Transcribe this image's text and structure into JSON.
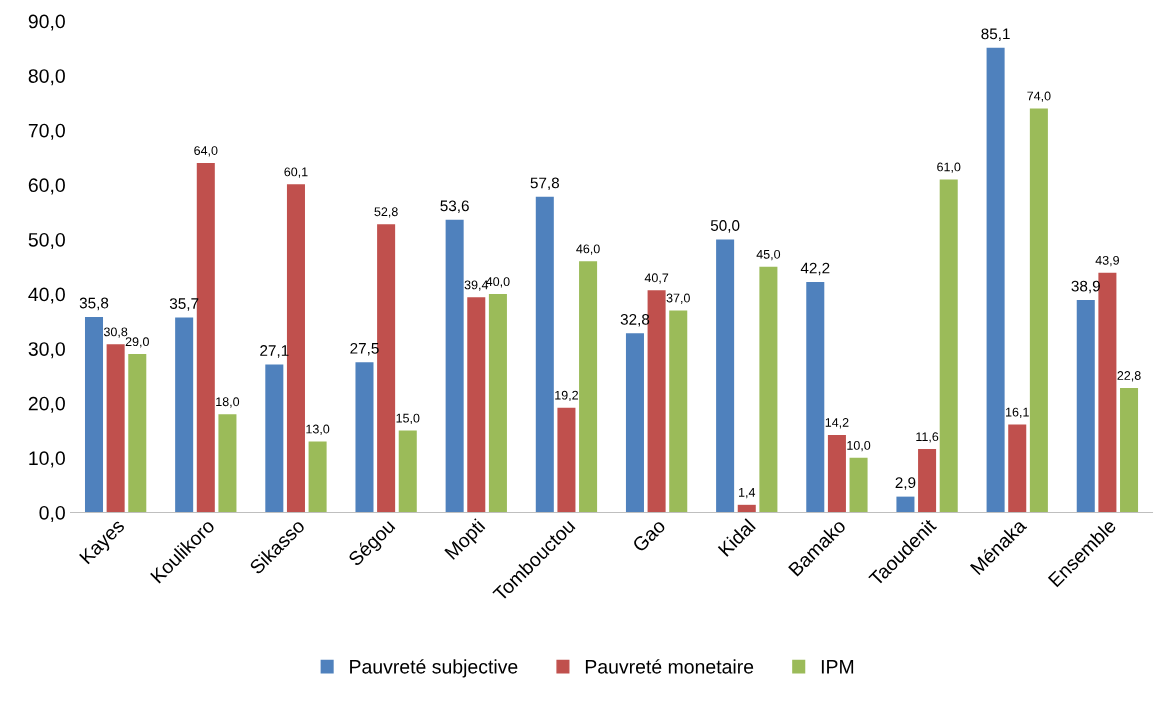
{
  "chart_data": {
    "type": "bar",
    "categories": [
      "Kayes",
      "Koulikoro",
      "Sikasso",
      "Ségou",
      "Mopti",
      "Tombouctou",
      "Gao",
      "Kidal",
      "Bamako",
      "Taoudenit",
      "Ménaka",
      "Ensemble"
    ],
    "series": [
      {
        "name": "Pauvreté subjective",
        "color": "#4f81bd",
        "values": [
          35.8,
          35.7,
          27.1,
          27.5,
          53.6,
          57.8,
          32.8,
          50.0,
          42.2,
          2.9,
          85.1,
          38.9
        ],
        "value_labels": [
          "35,8",
          "35,7",
          "27,1",
          "27,5",
          "53,6",
          "57,8",
          "32,8",
          "50,0",
          "42,2",
          "2,9",
          "85,1",
          "38,9"
        ]
      },
      {
        "name": "Pauvreté monetaire",
        "color": "#c0504d",
        "values": [
          30.8,
          64.0,
          60.1,
          52.8,
          39.4,
          19.2,
          40.7,
          1.4,
          14.2,
          11.6,
          16.1,
          43.9
        ],
        "value_labels": [
          "30,8",
          "64,0",
          "60,1",
          "52,8",
          "39,4",
          "19,2",
          "40,7",
          "1,4",
          "14,2",
          "11,6",
          "16,1",
          "43,9"
        ]
      },
      {
        "name": "IPM",
        "color": "#9bbb59",
        "values": [
          29.0,
          18.0,
          13.0,
          15.0,
          40.0,
          46.0,
          37.0,
          45.0,
          10.0,
          61.0,
          74.0,
          22.8
        ],
        "value_labels": [
          "29,0",
          "18,0",
          "13,0",
          "15,0",
          "40,0",
          "46,0",
          "37,0",
          "45,0",
          "10,0",
          "61,0",
          "74,0",
          "22,8"
        ]
      }
    ],
    "ylim": [
      0,
      90
    ],
    "yticks": [
      {
        "value": 0,
        "label": "0,0"
      },
      {
        "value": 10,
        "label": "10,0"
      },
      {
        "value": 20,
        "label": "20,0"
      },
      {
        "value": 30,
        "label": "30,0"
      },
      {
        "value": 40,
        "label": "40,0"
      },
      {
        "value": 50,
        "label": "50,0"
      },
      {
        "value": 60,
        "label": "60,0"
      },
      {
        "value": 70,
        "label": "70,0"
      },
      {
        "value": 80,
        "label": "80,0"
      },
      {
        "value": 90,
        "label": "90,0"
      }
    ],
    "grid": false,
    "legend": "bottom"
  }
}
